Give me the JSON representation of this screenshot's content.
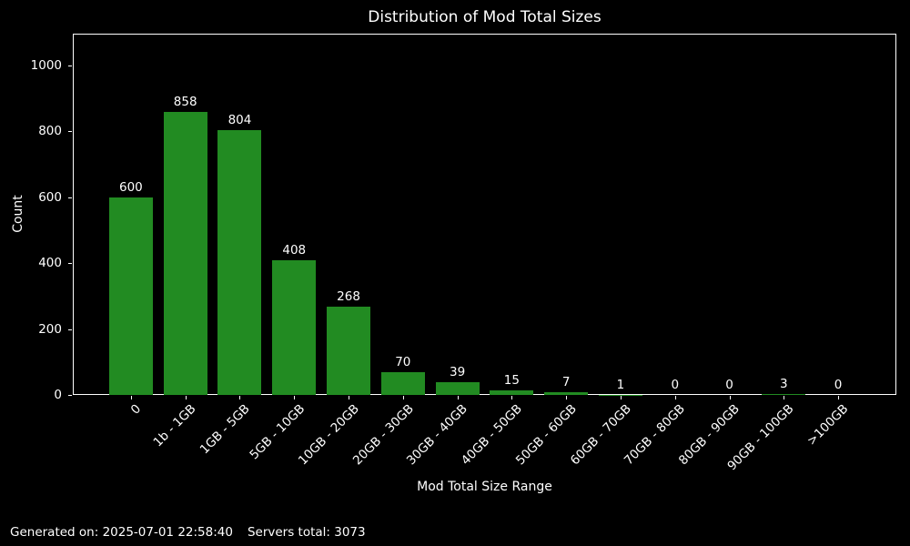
{
  "title": "Distribution of Mod Total Sizes",
  "footer": {
    "generated": "Generated on: 2025-07-01 22:58:40",
    "servers": "Servers total: 3073"
  },
  "chart_data": {
    "type": "bar",
    "title": "Distribution of Mod Total Sizes",
    "xlabel": "Mod Total Size Range",
    "ylabel": "Count",
    "categories": [
      "0",
      "1b - 1GB",
      "1GB - 5GB",
      "5GB - 10GB",
      "10GB - 20GB",
      "20GB - 30GB",
      "30GB - 40GB",
      "40GB - 50GB",
      "50GB - 60GB",
      "60GB - 70GB",
      "70GB - 80GB",
      "80GB - 90GB",
      "90GB - 100GB",
      ">100GB"
    ],
    "values": [
      600,
      858,
      804,
      408,
      268,
      70,
      39,
      15,
      7,
      1,
      0,
      0,
      3,
      0
    ],
    "yticks": [
      0,
      200,
      400,
      600,
      800,
      1000
    ],
    "ylim": [
      0,
      1096
    ],
    "bar_labels_shown": true,
    "grid": false,
    "legend": "none",
    "colors": {
      "bar": "#228B22",
      "background": "#000000",
      "text": "#ffffff",
      "spine": "#ffffff"
    }
  }
}
